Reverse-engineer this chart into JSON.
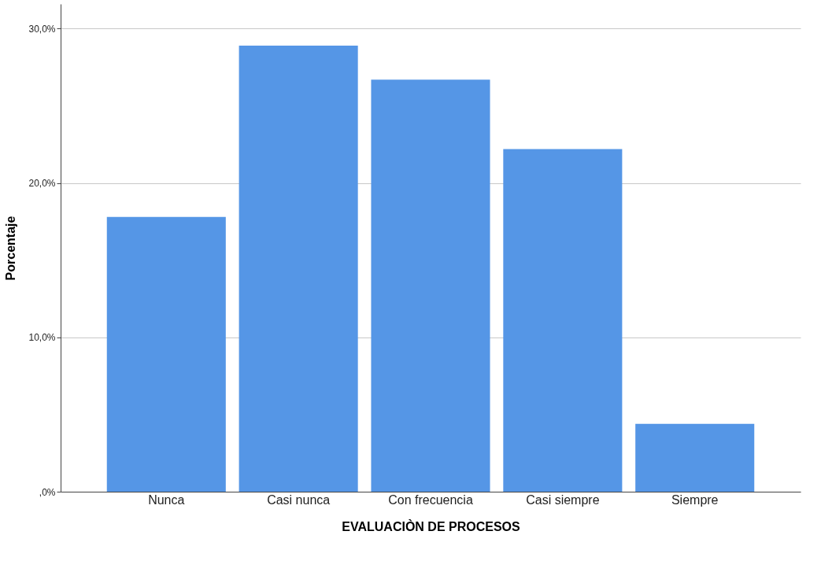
{
  "chart_data": {
    "type": "bar",
    "xlabel": "EVALUACIÒN DE PROCESOS",
    "ylabel": "Porcentaje",
    "categories": [
      "Nunca",
      "Casi nunca",
      "Con frecuencia",
      "Casi siempre",
      "Siempre"
    ],
    "values": [
      17.8,
      28.9,
      26.7,
      22.2,
      4.4
    ],
    "color": "#5596e6",
    "ylim": [
      0,
      31.6
    ],
    "yticks": [
      {
        "value": 0,
        "label": ",0%"
      },
      {
        "value": 10,
        "label": "10,0%"
      },
      {
        "value": 20,
        "label": "20,0%"
      },
      {
        "value": 30,
        "label": "30,0%"
      }
    ],
    "grid": "y"
  }
}
